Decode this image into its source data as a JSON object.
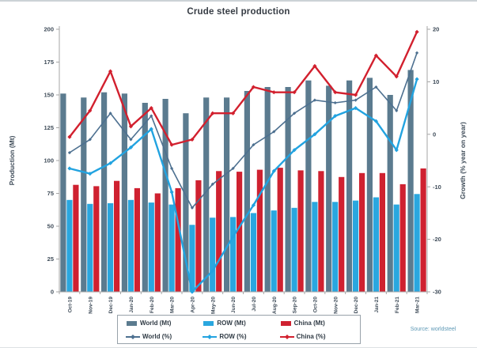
{
  "chart_data": {
    "type": "bar",
    "combo": "bars-left-axis + lines-right-axis",
    "title": "Crude steel production",
    "categories": [
      "Oct-19",
      "Nov-19",
      "Dec-19",
      "Jan-20",
      "Feb-20",
      "Mar-20",
      "Apr-20",
      "May-20",
      "Jun-20",
      "Jul-20",
      "Aug-20",
      "Sep-20",
      "Oct-20",
      "Nov-20",
      "Dec-20",
      "Jan-21",
      "Feb-21",
      "Mar-21"
    ],
    "bar_series": [
      {
        "name": "World (Mt)",
        "axis": "left",
        "color": "#5b7b8f",
        "values": [
          151,
          148,
          152,
          151,
          144,
          147,
          136,
          148,
          148,
          153,
          156,
          156,
          161,
          157,
          161,
          163,
          150,
          169
        ]
      },
      {
        "name": "ROW (Mt)",
        "axis": "left",
        "color": "#2aa7df",
        "values": [
          70,
          67,
          67.5,
          70,
          68,
          66.5,
          51,
          56.5,
          57,
          60,
          62,
          64,
          68.5,
          68.5,
          69.5,
          72,
          66.5,
          74.5
        ]
      },
      {
        "name": "China (Mt)",
        "axis": "left",
        "color": "#cf2130",
        "values": [
          81.5,
          80.5,
          84.5,
          79,
          75,
          79,
          85,
          92,
          91.5,
          93,
          94.5,
          92.5,
          92,
          87.5,
          90.5,
          90.5,
          82,
          94
        ]
      }
    ],
    "line_series": [
      {
        "name": "World (%)",
        "axis": "right",
        "color": "#4d7090",
        "width": 1.6,
        "values": [
          -3.5,
          -1,
          4,
          -1,
          3.5,
          -6.5,
          -14,
          -9.5,
          -6.5,
          -2,
          0.5,
          4,
          6.5,
          6,
          6.5,
          9,
          4.5,
          15.5
        ]
      },
      {
        "name": "ROW (%)",
        "axis": "right",
        "color": "#22a3e0",
        "width": 2.4,
        "values": [
          -6.5,
          -7.5,
          -5.5,
          -2.5,
          1,
          -11,
          -30,
          -26,
          -19.5,
          -13.5,
          -7,
          -3,
          0,
          3.5,
          5,
          2.5,
          -3,
          10.5
        ]
      },
      {
        "name": "China (%)",
        "axis": "right",
        "color": "#d2202e",
        "width": 2.4,
        "values": [
          -0.5,
          4.5,
          12,
          1.5,
          5,
          -2,
          -1,
          4,
          4,
          9,
          8,
          8,
          13,
          8,
          7.5,
          15,
          11,
          19.5
        ]
      }
    ],
    "left_axis": {
      "title": "Production (Mt)",
      "min": 0,
      "max": 200,
      "step": 25
    },
    "right_axis": {
      "title": "Growth (% year on year)",
      "min": -30,
      "max": 20,
      "step": 10
    },
    "legend_position": "bottom",
    "grid": false
  },
  "source": {
    "text": "Source: worldsteel"
  },
  "style_colors": {
    "tick_label": "#3f4c59",
    "axis_line": "#a6a6a6",
    "title_text": "#363c44",
    "source_text": "#5d98b5"
  }
}
